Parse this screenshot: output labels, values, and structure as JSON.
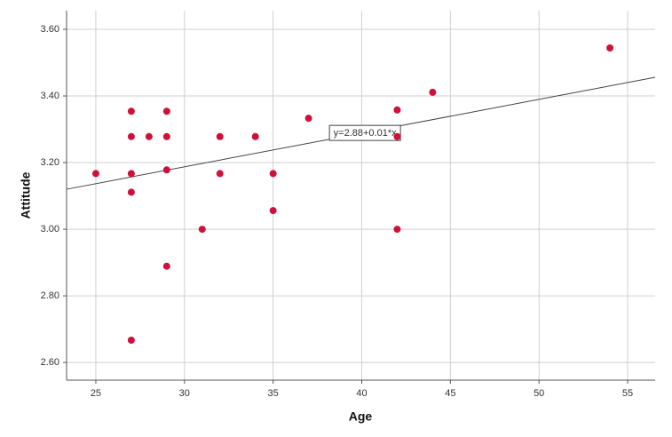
{
  "chart_data": {
    "type": "scatter",
    "x_label": "Age",
    "y_label": "Attitude",
    "x": [
      25,
      27,
      27,
      27,
      27,
      27,
      28,
      29,
      29,
      29,
      29,
      31,
      32,
      32,
      34,
      35,
      35,
      37,
      42,
      42,
      42,
      44,
      54
    ],
    "values": [
      3.167,
      3.354,
      3.278,
      3.167,
      3.111,
      2.667,
      3.278,
      3.354,
      3.278,
      3.178,
      2.889,
      3.0,
      3.278,
      3.167,
      3.278,
      3.167,
      3.056,
      3.333,
      3.358,
      3.278,
      3.0,
      3.411,
      3.544
    ],
    "color": "#d0103a",
    "xlim": [
      23.35,
      56.55
    ],
    "ylim": [
      2.547,
      3.656
    ],
    "xticks": [
      25,
      30,
      35,
      40,
      45,
      50,
      55
    ],
    "yticks": [
      {
        "value": 2.6,
        "label": "2.60"
      },
      {
        "value": 2.8,
        "label": "2.80"
      },
      {
        "value": 3.0,
        "label": "3.00"
      },
      {
        "value": 3.2,
        "label": "3.20"
      },
      {
        "value": 3.4,
        "label": "3.40"
      },
      {
        "value": 3.6,
        "label": "3.60"
      }
    ],
    "grid": true,
    "fit_line": {
      "label": "y=2.88+0.01*x",
      "x": [
        23.35,
        56.55
      ],
      "y": [
        3.12,
        3.456
      ]
    }
  }
}
